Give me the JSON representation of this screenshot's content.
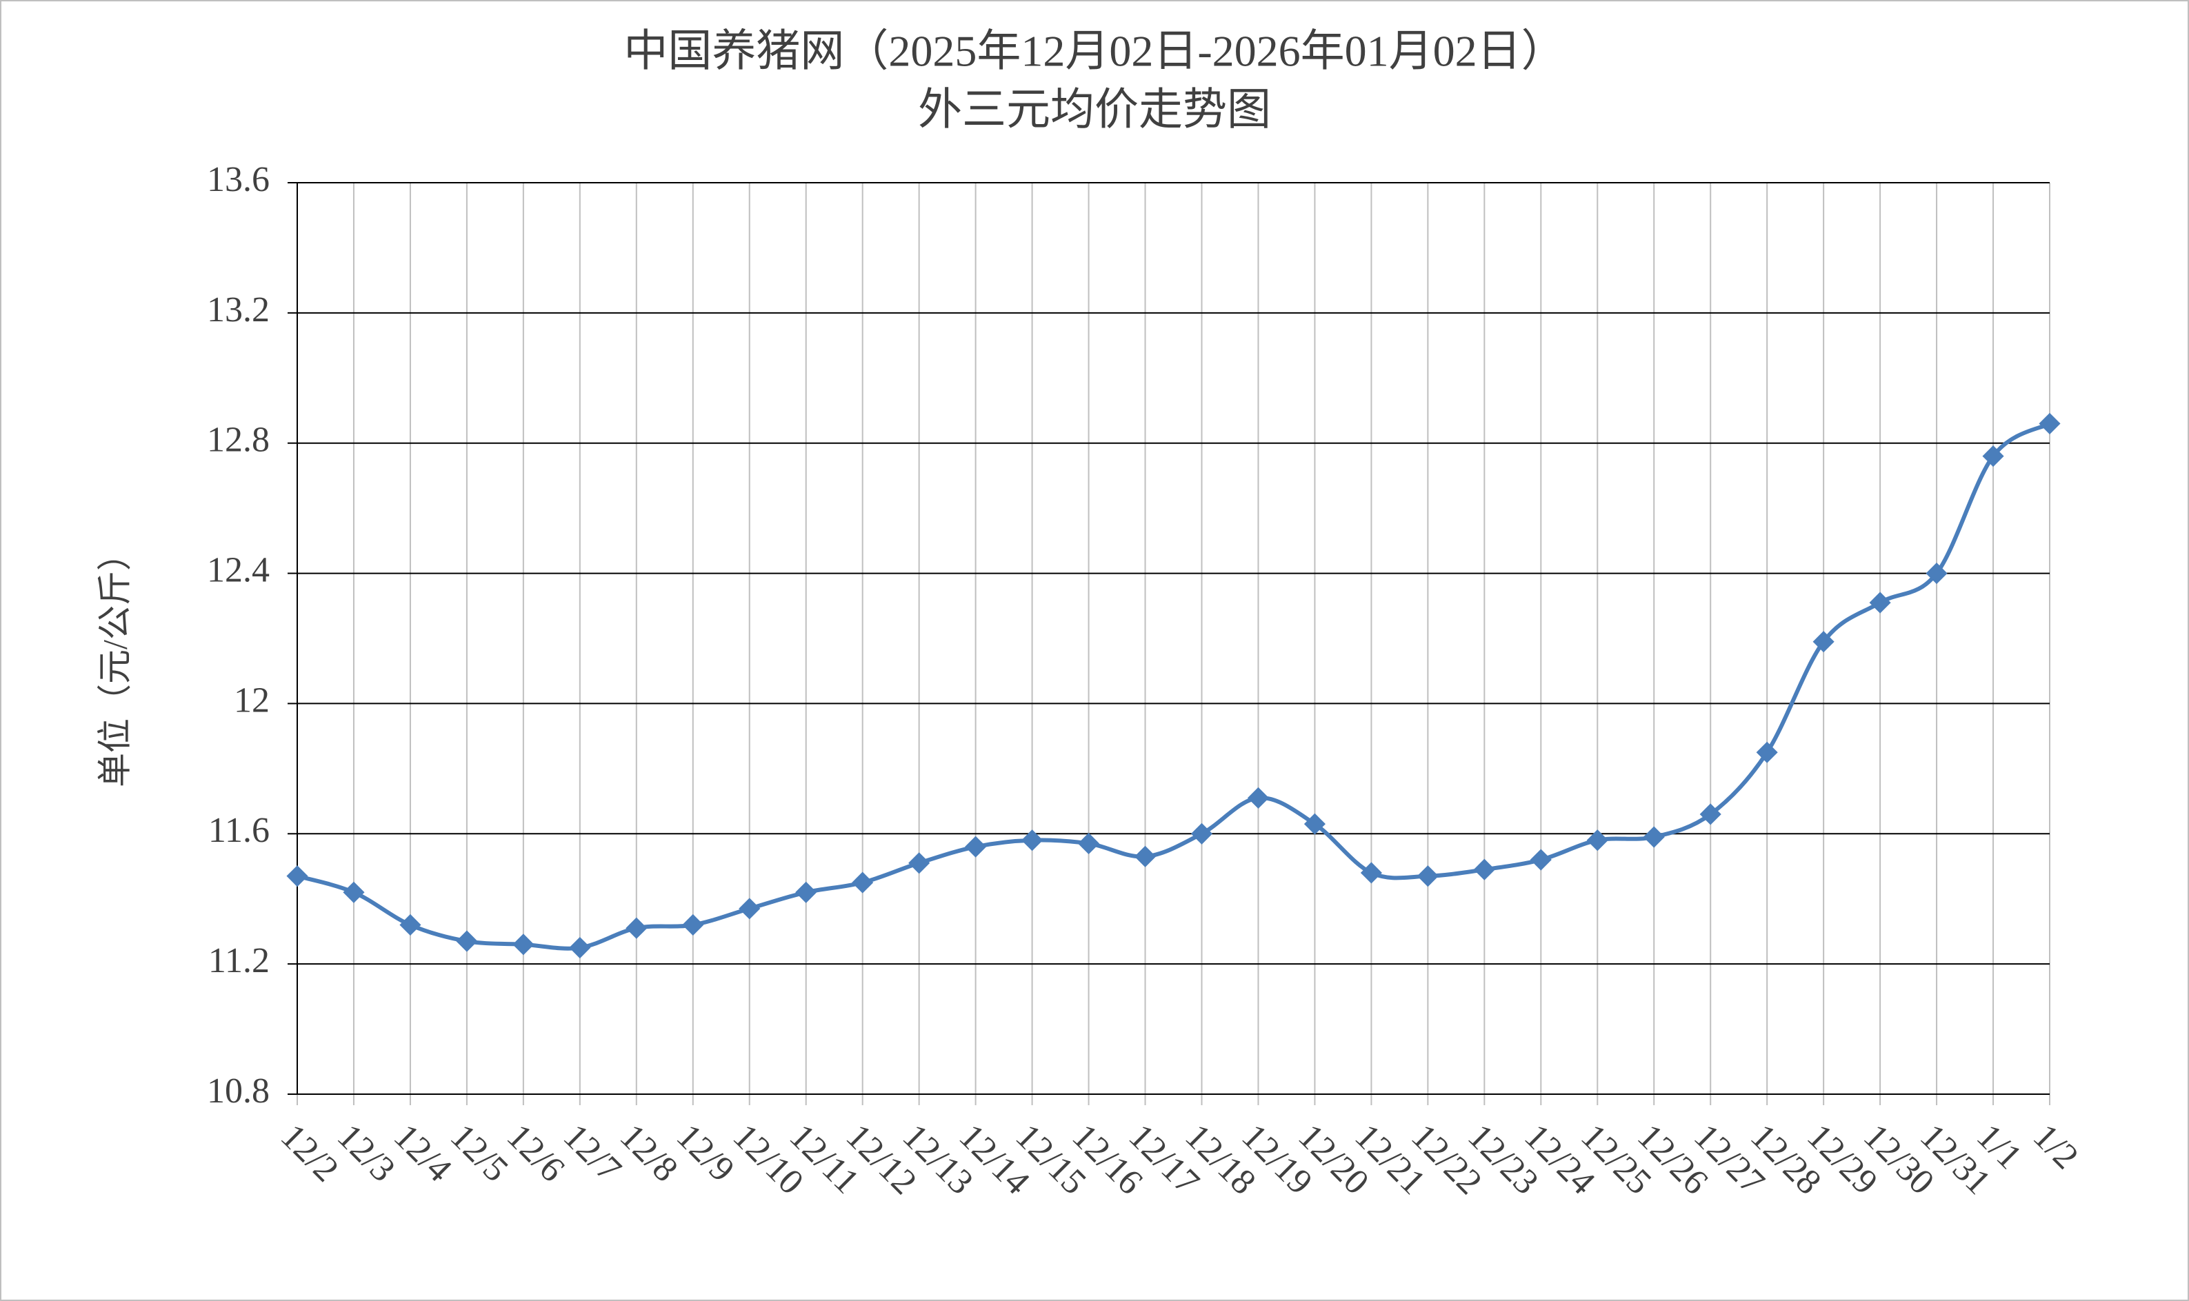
{
  "chart_data": {
    "type": "line",
    "title": "中国养猪网（2025年12月02日-2026年01月02日）",
    "subtitle": "外三元均价走势图",
    "y_label": "单位（元/公斤）",
    "categories": [
      "12/2",
      "12/3",
      "12/4",
      "12/5",
      "12/6",
      "12/7",
      "12/8",
      "12/9",
      "12/10",
      "12/11",
      "12/12",
      "12/13",
      "12/14",
      "12/15",
      "12/16",
      "12/17",
      "12/18",
      "12/19",
      "12/20",
      "12/21",
      "12/22",
      "12/23",
      "12/24",
      "12/25",
      "12/26",
      "12/27",
      "12/28",
      "12/29",
      "12/30",
      "12/31",
      "1/1",
      "1/2"
    ],
    "series": [
      {
        "name": "外三元",
        "color": "#4a7ebb",
        "values": [
          11.47,
          11.42,
          11.32,
          11.27,
          11.26,
          11.25,
          11.31,
          11.32,
          11.37,
          11.42,
          11.45,
          11.51,
          11.56,
          11.58,
          11.57,
          11.53,
          11.6,
          11.71,
          11.63,
          11.48,
          11.47,
          11.49,
          11.52,
          11.58,
          11.59,
          11.66,
          11.85,
          12.19,
          12.31,
          12.4,
          12.76,
          12.86
        ]
      }
    ],
    "ylim": [
      10.8,
      13.6
    ],
    "yticks": [
      10.8,
      11.2,
      11.6,
      12,
      12.4,
      12.8,
      13.2,
      13.6
    ],
    "grid": true,
    "smooth": true
  }
}
